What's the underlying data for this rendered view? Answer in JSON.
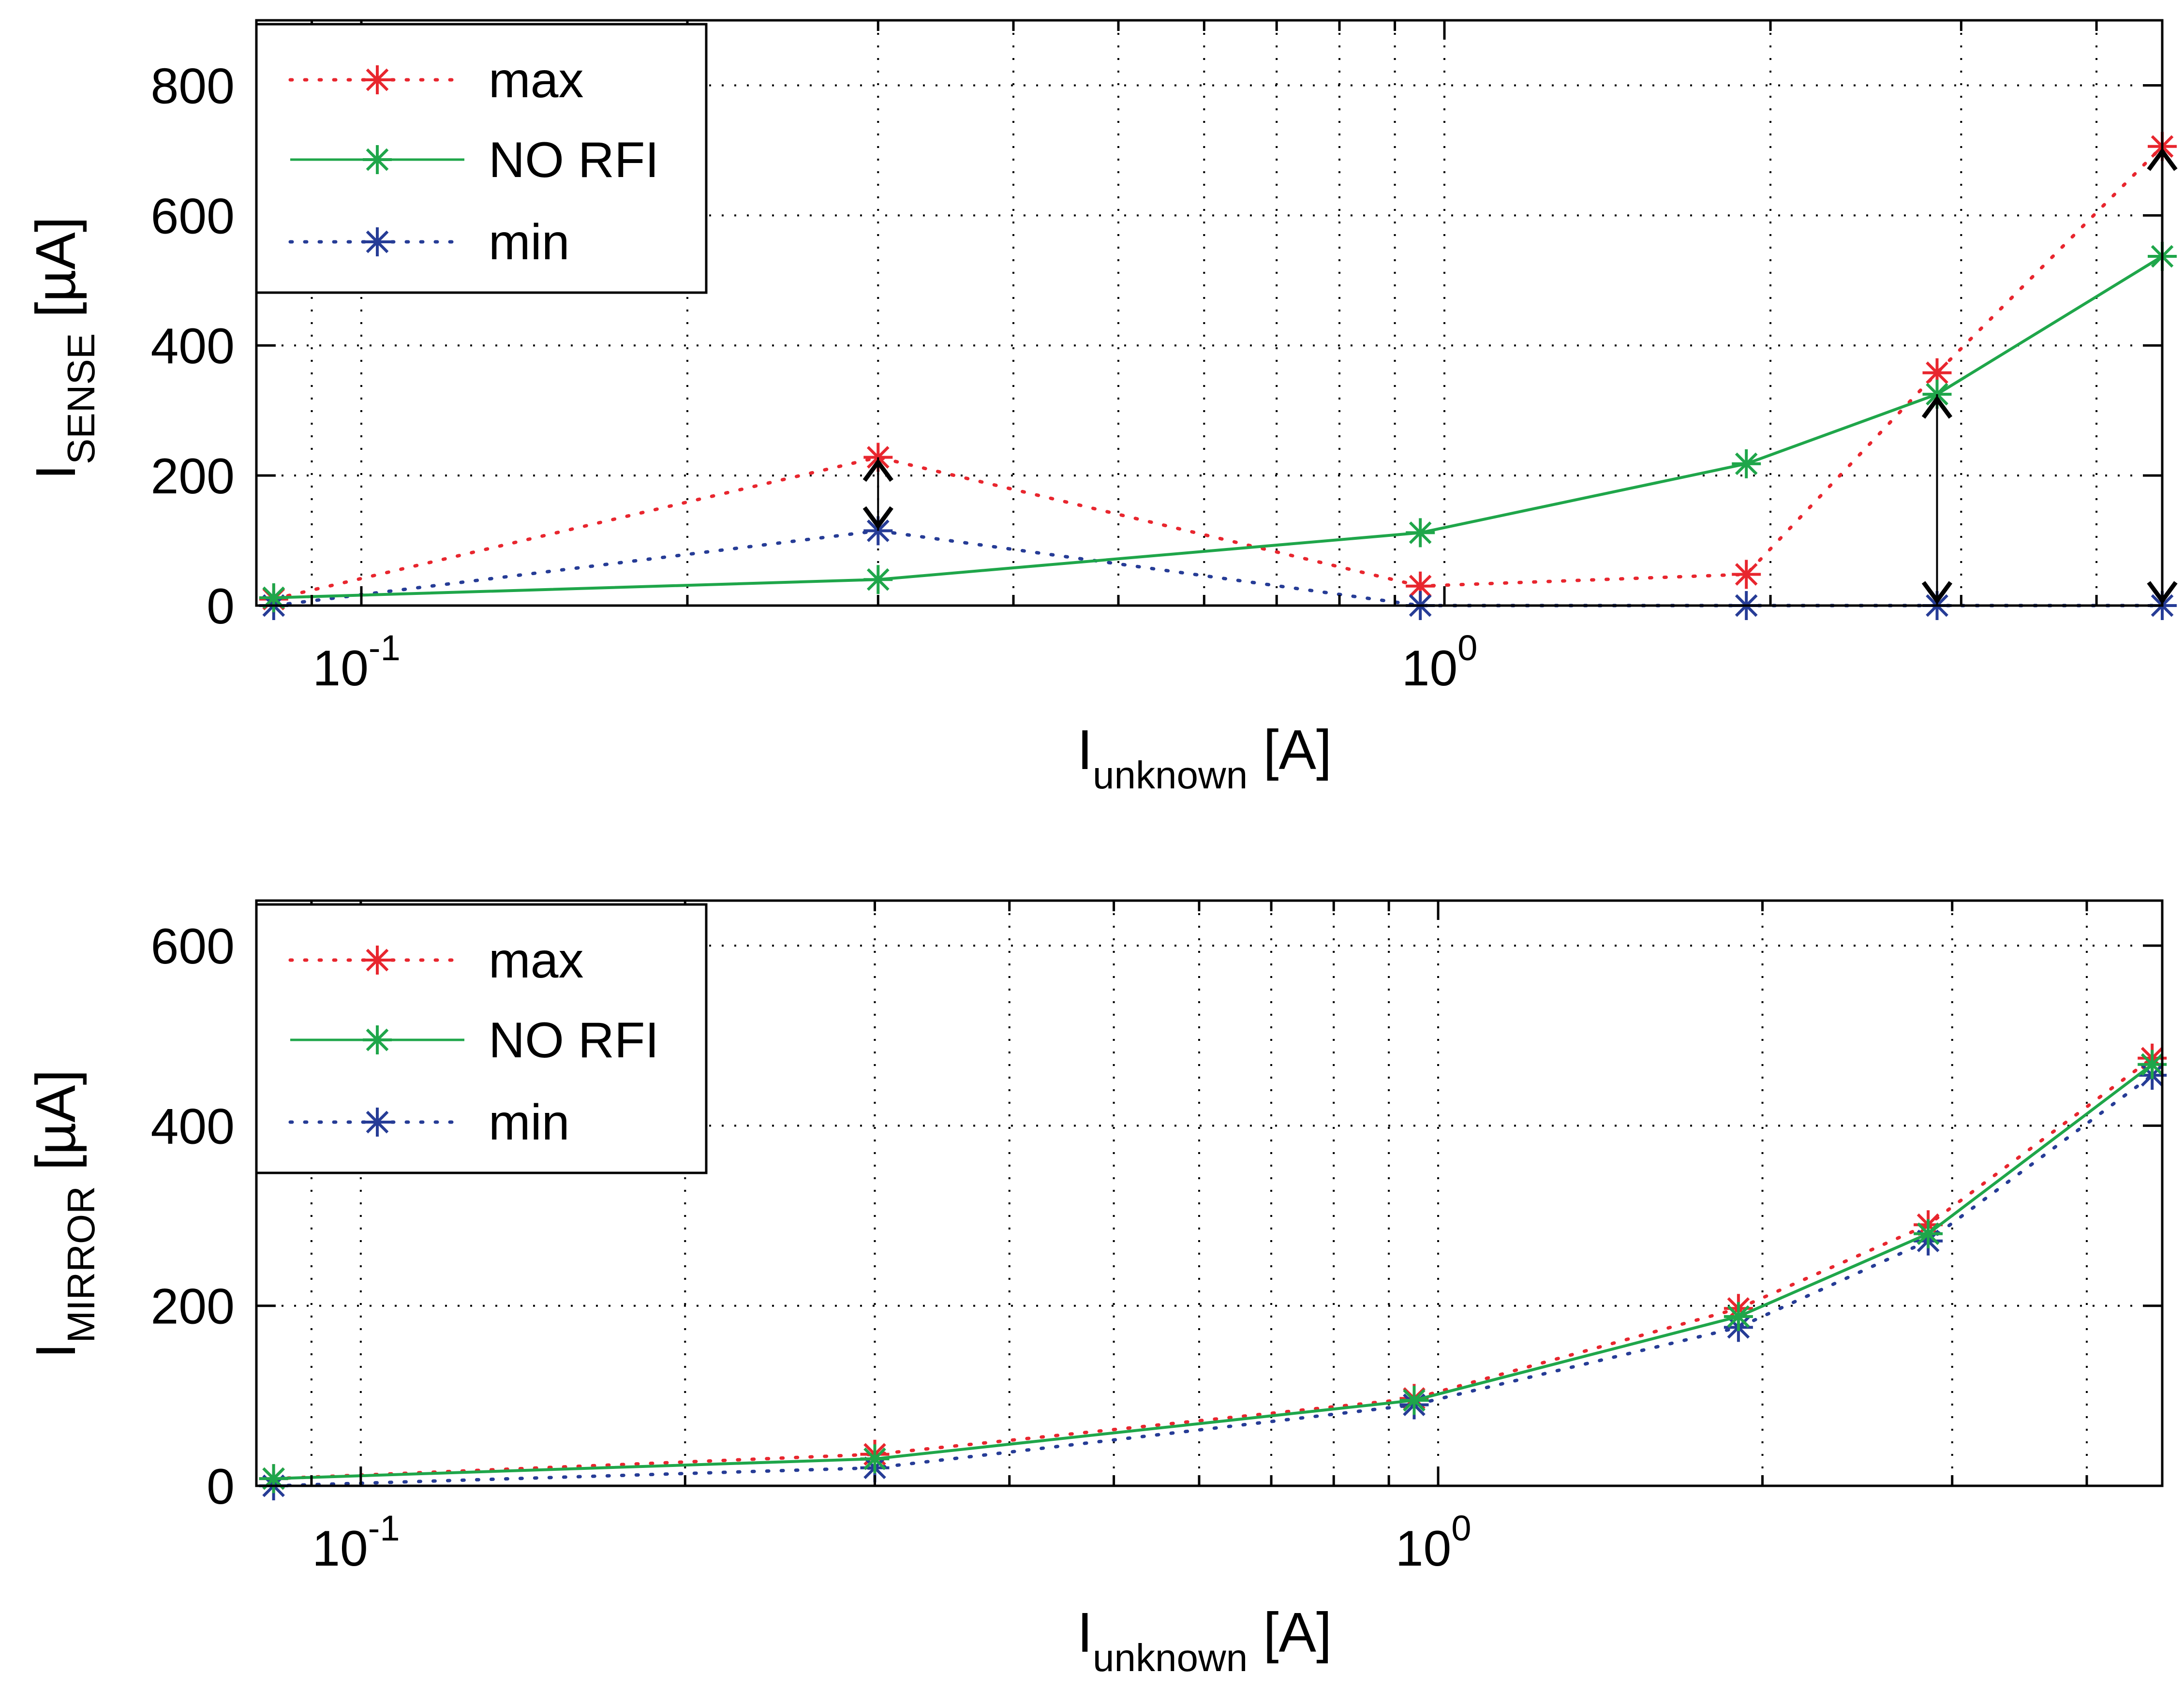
{
  "chart_data": [
    {
      "type": "line",
      "xscale": "log",
      "xlim": [
        0.08,
        4.6
      ],
      "ylim": [
        0,
        900
      ],
      "ylabel": {
        "main": "I",
        "sub": "SENSE",
        "unit": " [µA]"
      },
      "xlabel": {
        "main": "I",
        "sub": "unknown",
        "unit": " [A]"
      },
      "xticks": [
        {
          "value": 0.1,
          "base": "10",
          "exp": "-1"
        },
        {
          "value": 1,
          "base": "10",
          "exp": "0"
        }
      ],
      "yticks": [
        0,
        200,
        400,
        600,
        800
      ],
      "grid": true,
      "legend_location": "top-left",
      "x": [
        0.083,
        0.3,
        0.95,
        1.9,
        2.85,
        4.6
      ],
      "series": [
        {
          "name": "max",
          "color": "#e8262e",
          "style": "dotted",
          "values": [
            10,
            228,
            30,
            48,
            358,
            706
          ]
        },
        {
          "name": "NO RFI",
          "color": "#1fa64a",
          "style": "solid",
          "values": [
            12,
            40,
            112,
            218,
            325,
            537
          ]
        },
        {
          "name": "min",
          "color": "#263c96",
          "style": "dotted",
          "values": [
            0,
            115,
            0,
            0,
            0,
            0
          ]
        }
      ],
      "annotations": [
        {
          "type": "double-arrow",
          "x": 0.3,
          "y_from": 115,
          "y_to": 228
        },
        {
          "type": "double-arrow",
          "x": 2.85,
          "y_from": 0,
          "y_to": 325
        },
        {
          "type": "double-arrow",
          "x": 4.6,
          "y_from": 0,
          "y_to": 706
        }
      ]
    },
    {
      "type": "line",
      "xscale": "log",
      "xlim": [
        0.08,
        4.7
      ],
      "ylim": [
        0,
        650
      ],
      "ylabel": {
        "main": "I",
        "sub": "MIRROR",
        "unit": " [µA]"
      },
      "xlabel": {
        "main": "I",
        "sub": "unknown",
        "unit": " [A]"
      },
      "xticks": [
        {
          "value": 0.1,
          "base": "10",
          "exp": "-1"
        },
        {
          "value": 1,
          "base": "10",
          "exp": "0"
        }
      ],
      "yticks": [
        0,
        200,
        400,
        600
      ],
      "grid": true,
      "legend_location": "top-left",
      "x": [
        0.083,
        0.3,
        0.95,
        1.9,
        2.85,
        4.6
      ],
      "series": [
        {
          "name": "max",
          "color": "#e8262e",
          "style": "dotted",
          "values": [
            8,
            35,
            97,
            197,
            290,
            475
          ]
        },
        {
          "name": "NO RFI",
          "color": "#1fa64a",
          "style": "solid",
          "values": [
            8,
            30,
            95,
            188,
            280,
            468
          ]
        },
        {
          "name": "min",
          "color": "#263c96",
          "style": "dotted",
          "values": [
            0,
            20,
            90,
            176,
            272,
            456
          ]
        }
      ],
      "annotations": []
    }
  ]
}
